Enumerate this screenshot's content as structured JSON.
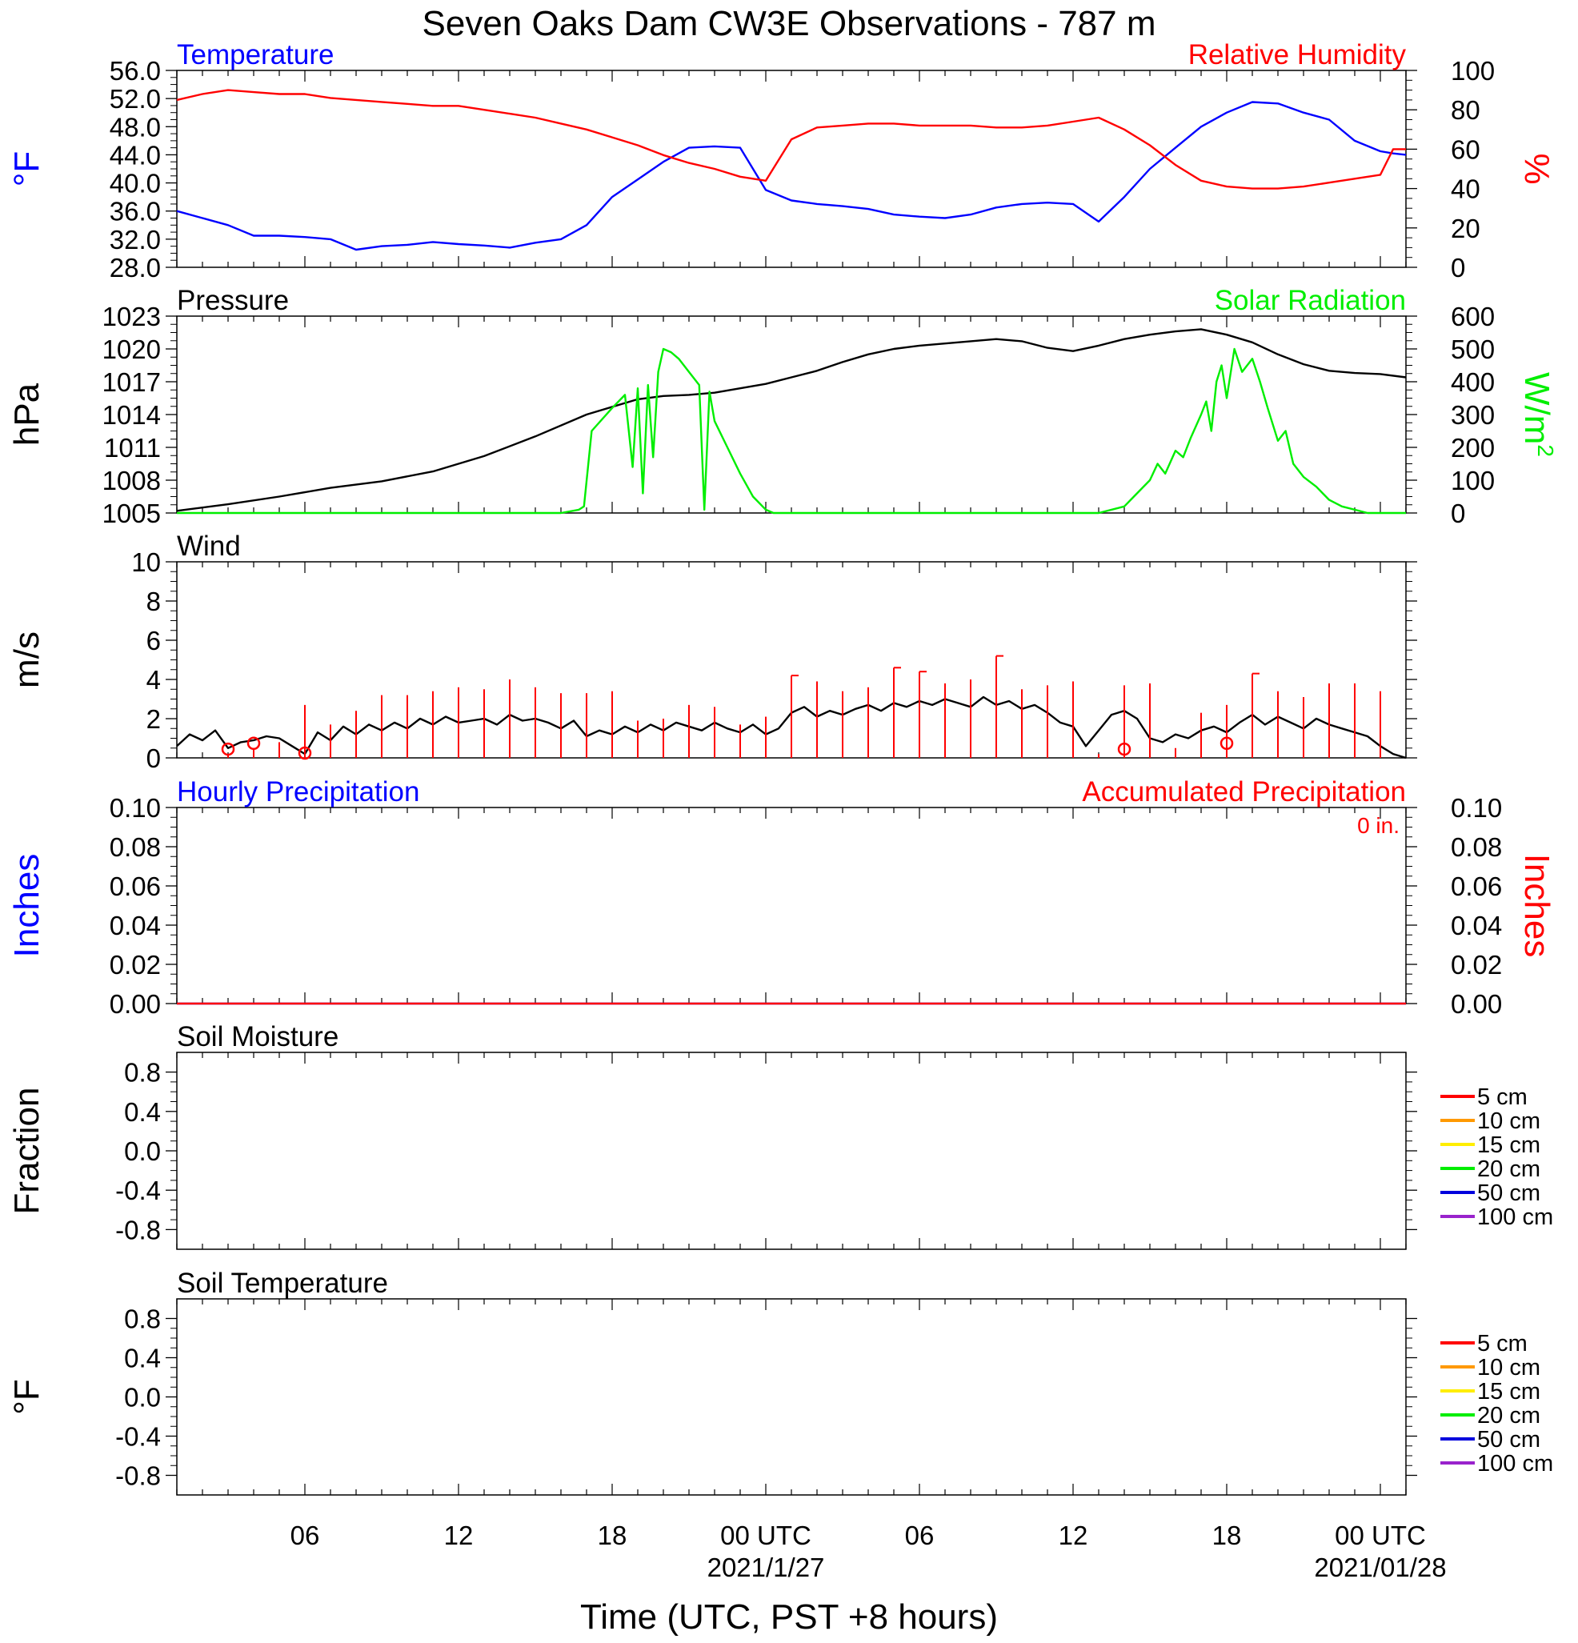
{
  "title": "Seven Oaks Dam CW3E Observations - 787 m",
  "x_axis": {
    "label": "Time (UTC, PST +8 hours)",
    "range_hours": [
      0,
      48
    ],
    "ticks": [
      {
        "hour": 5,
        "label": "06",
        "date": ""
      },
      {
        "hour": 11,
        "label": "12",
        "date": ""
      },
      {
        "hour": 17,
        "label": "18",
        "date": ""
      },
      {
        "hour": 23,
        "label": "00 UTC",
        "date": "2021/1/27"
      },
      {
        "hour": 29,
        "label": "06",
        "date": ""
      },
      {
        "hour": 35,
        "label": "12",
        "date": ""
      },
      {
        "hour": 41,
        "label": "18",
        "date": ""
      },
      {
        "hour": 47,
        "label": "00 UTC",
        "date": "2021/01/28"
      }
    ]
  },
  "colors": {
    "temperature": "#0000ff",
    "humidity": "#ff0000",
    "pressure": "#000000",
    "solar": "#00ee00",
    "wind": "#000000",
    "barb": "#ff0000",
    "hourly_precip": "#0000ff",
    "accum_precip": "#ff0000"
  },
  "chart_data": [
    {
      "id": "temp_rh",
      "type": "line",
      "title_left": "Temperature",
      "title_right": "Relative Humidity",
      "ylabel_left": "°F",
      "ylabel_right": "%",
      "ylim_left": [
        28,
        56
      ],
      "ylim_right": [
        0,
        100
      ],
      "yticks_left": [
        "28.0",
        "32.0",
        "36.0",
        "40.0",
        "44.0",
        "48.0",
        "52.0",
        "56.0"
      ],
      "yticks_right": [
        "0",
        "20",
        "40",
        "60",
        "80",
        "100"
      ],
      "series": [
        {
          "name": "Temperature",
          "axis": "left",
          "x": [
            0,
            1,
            2,
            3,
            4,
            5,
            6,
            7,
            8,
            9,
            10,
            11,
            12,
            13,
            14,
            15,
            16,
            17,
            18,
            19,
            20,
            21,
            22,
            23,
            24,
            25,
            26,
            27,
            28,
            29,
            30,
            31,
            32,
            33,
            34,
            35,
            36,
            37,
            38,
            39,
            40,
            41,
            42,
            43,
            44,
            45,
            46,
            47,
            47.5,
            48
          ],
          "y": [
            36,
            35,
            34,
            32.5,
            32.5,
            32.3,
            32,
            30.5,
            31,
            31.2,
            31.6,
            31.3,
            31.1,
            30.8,
            31.5,
            32,
            34,
            38,
            40.5,
            43,
            45,
            45.2,
            45,
            39,
            37.5,
            37,
            36.7,
            36.3,
            35.5,
            35.2,
            35,
            35.5,
            36.5,
            37,
            37.2,
            37,
            34.5,
            38,
            42,
            45,
            48,
            50,
            51.5,
            51.3,
            50,
            49,
            46,
            44.5,
            44.2,
            44
          ]
        },
        {
          "name": "Relative Humidity",
          "axis": "right",
          "x": [
            0,
            1,
            2,
            3,
            4,
            5,
            6,
            7,
            8,
            9,
            10,
            11,
            12,
            13,
            14,
            15,
            16,
            17,
            18,
            19,
            20,
            21,
            22,
            23,
            24,
            25,
            26,
            27,
            28,
            29,
            30,
            31,
            32,
            33,
            34,
            35,
            36,
            37,
            38,
            39,
            40,
            41,
            42,
            43,
            44,
            45,
            46,
            47,
            47.5,
            48
          ],
          "y": [
            85,
            88,
            90,
            89,
            88,
            88,
            86,
            85,
            84,
            83,
            82,
            82,
            80,
            78,
            76,
            73,
            70,
            66,
            62,
            57,
            53,
            50,
            46,
            44,
            65,
            71,
            72,
            73,
            73,
            72,
            72,
            72,
            71,
            71,
            72,
            74,
            76,
            70,
            62,
            52,
            44,
            41,
            40,
            40,
            41,
            43,
            45,
            47,
            60,
            60
          ]
        }
      ]
    },
    {
      "id": "pressure_solar",
      "type": "line",
      "title_left": "Pressure",
      "title_right": "Solar Radiation",
      "ylabel_left": "hPa",
      "ylabel_right": "W/m",
      "ylabel_right_sup": "2",
      "ylim_left": [
        1005,
        1023
      ],
      "ylim_right": [
        0,
        600
      ],
      "yticks_left": [
        "1005",
        "1008",
        "1011",
        "1014",
        "1017",
        "1020",
        "1023"
      ],
      "yticks_right": [
        "0",
        "100",
        "200",
        "300",
        "400",
        "500",
        "600"
      ],
      "series": [
        {
          "name": "Pressure",
          "axis": "left",
          "x": [
            0,
            2,
            4,
            6,
            8,
            10,
            12,
            14,
            16,
            17,
            18,
            19,
            20,
            21,
            22,
            23,
            24,
            25,
            26,
            27,
            28,
            29,
            30,
            31,
            32,
            33,
            34,
            35,
            36,
            37,
            38,
            39,
            40,
            41,
            42,
            43,
            44,
            45,
            46,
            47,
            48
          ],
          "y": [
            1005.2,
            1005.8,
            1006.5,
            1007.3,
            1007.9,
            1008.8,
            1010.2,
            1012,
            1014,
            1014.7,
            1015.4,
            1015.7,
            1015.8,
            1016,
            1016.4,
            1016.8,
            1017.4,
            1018,
            1018.8,
            1019.5,
            1020,
            1020.3,
            1020.5,
            1020.7,
            1020.9,
            1020.7,
            1020.1,
            1019.8,
            1020.3,
            1020.9,
            1021.3,
            1021.6,
            1021.8,
            1021.3,
            1020.6,
            1019.5,
            1018.6,
            1018,
            1017.8,
            1017.7,
            1017.4
          ]
        },
        {
          "name": "Solar Radiation",
          "axis": "right",
          "x": [
            0,
            14,
            15,
            15.7,
            15.9,
            16.2,
            17,
            17.5,
            17.8,
            18,
            18.2,
            18.4,
            18.6,
            18.8,
            19,
            19.3,
            19.6,
            20,
            20.4,
            20.6,
            20.8,
            21,
            21.5,
            22,
            22.5,
            23,
            23.3,
            23.4,
            36,
            37,
            37.5,
            38,
            38.3,
            38.6,
            39,
            39.3,
            39.6,
            40,
            40.2,
            40.4,
            40.6,
            40.8,
            41,
            41.3,
            41.6,
            42,
            42.3,
            42.6,
            43,
            43.3,
            43.6,
            44,
            44.5,
            45,
            45.5,
            46,
            46.5,
            47,
            47.4,
            47.6,
            48
          ],
          "y": [
            0,
            0,
            0,
            10,
            20,
            250,
            320,
            360,
            140,
            380,
            60,
            390,
            170,
            430,
            500,
            490,
            470,
            430,
            390,
            10,
            370,
            280,
            200,
            120,
            50,
            10,
            0,
            0,
            0,
            20,
            60,
            100,
            150,
            120,
            190,
            170,
            230,
            300,
            340,
            250,
            400,
            450,
            350,
            500,
            430,
            470,
            400,
            320,
            220,
            250,
            150,
            110,
            80,
            40,
            20,
            10,
            0,
            0,
            0,
            0,
            0
          ]
        }
      ]
    },
    {
      "id": "wind",
      "type": "line",
      "title_left": "Wind",
      "ylabel_left": "m/s",
      "ylim_left": [
        0,
        10
      ],
      "yticks_left": [
        "0",
        "2",
        "4",
        "6",
        "8",
        "10"
      ],
      "series": [
        {
          "name": "Wind Speed",
          "axis": "left",
          "x": [
            0,
            0.5,
            1,
            1.5,
            2,
            2.5,
            3,
            3.5,
            4,
            4.5,
            5,
            5.5,
            6,
            6.5,
            7,
            7.5,
            8,
            8.5,
            9,
            9.5,
            10,
            10.5,
            11,
            11.5,
            12,
            12.5,
            13,
            13.5,
            14,
            14.5,
            15,
            15.5,
            16,
            16.5,
            17,
            17.5,
            18,
            18.5,
            19,
            19.5,
            20,
            20.5,
            21,
            21.5,
            22,
            22.5,
            23,
            23.5,
            24,
            24.5,
            25,
            25.5,
            26,
            26.5,
            27,
            27.5,
            28,
            28.5,
            29,
            29.5,
            30,
            30.5,
            31,
            31.5,
            32,
            32.5,
            33,
            33.5,
            34,
            34.5,
            35,
            35.5,
            36,
            36.5,
            37,
            37.5,
            38,
            38.5,
            39,
            39.5,
            40,
            40.5,
            41,
            41.5,
            42,
            42.5,
            43,
            43.5,
            44,
            44.5,
            45,
            45.5,
            46,
            46.5,
            47,
            47.5,
            48
          ],
          "y": [
            0.6,
            1.2,
            0.9,
            1.4,
            0.5,
            0.8,
            0.9,
            1.1,
            1.0,
            0.6,
            0.2,
            1.3,
            0.9,
            1.6,
            1.2,
            1.7,
            1.4,
            1.8,
            1.5,
            2.0,
            1.7,
            2.1,
            1.8,
            1.9,
            2.0,
            1.7,
            2.2,
            1.9,
            2.0,
            1.8,
            1.5,
            1.9,
            1.1,
            1.4,
            1.2,
            1.6,
            1.3,
            1.7,
            1.4,
            1.8,
            1.6,
            1.4,
            1.8,
            1.5,
            1.3,
            1.7,
            1.2,
            1.5,
            2.3,
            2.6,
            2.1,
            2.4,
            2.2,
            2.5,
            2.7,
            2.4,
            2.8,
            2.6,
            2.9,
            2.7,
            3.0,
            2.8,
            2.6,
            3.1,
            2.7,
            2.9,
            2.5,
            2.7,
            2.3,
            1.8,
            1.6,
            0.6,
            1.4,
            2.2,
            2.4,
            2.0,
            1.0,
            0.8,
            1.2,
            1.0,
            1.4,
            1.6,
            1.3,
            1.8,
            2.2,
            1.7,
            2.1,
            1.8,
            1.5,
            2.0,
            1.7,
            1.5,
            1.3,
            1.1,
            0.6,
            0.2,
            0.0
          ]
        },
        {
          "name": "Wind Barbs",
          "axis": "left",
          "marker": "barb",
          "x": [
            2,
            3,
            4,
            5,
            6,
            7,
            8,
            9,
            10,
            11,
            12,
            13,
            14,
            15,
            16,
            17,
            18,
            19,
            20,
            21,
            22,
            23,
            24,
            25,
            26,
            27,
            28,
            29,
            30,
            31,
            32,
            33,
            34,
            35,
            36,
            37,
            38,
            39,
            40,
            41,
            42,
            43,
            44,
            45,
            46,
            47
          ],
          "y": [
            0.2,
            0.5,
            0.8,
            2.7,
            1.7,
            2.4,
            3.2,
            3.2,
            3.4,
            3.6,
            3.5,
            4.0,
            3.6,
            3.3,
            3.3,
            3.4,
            1.9,
            2.0,
            2.7,
            2.6,
            1.7,
            2.1,
            4.2,
            3.9,
            3.4,
            3.6,
            4.6,
            4.4,
            3.8,
            4.0,
            5.2,
            3.5,
            3.7,
            3.9,
            0.2,
            3.7,
            3.8,
            0.5,
            2.3,
            2.7,
            4.3,
            3.4,
            3.1,
            3.8,
            3.8,
            3.4
          ]
        },
        {
          "name": "Calm",
          "axis": "left",
          "marker": "circle",
          "x": [
            2,
            3,
            5,
            37,
            41
          ],
          "y": [
            0.2,
            0.5,
            0.0,
            0.2,
            0.5
          ]
        }
      ]
    },
    {
      "id": "precip",
      "type": "line",
      "title_left": "Hourly Precipitation",
      "title_right": "Accumulated Precipitation",
      "annotation": "0 in.",
      "ylabel_left": "Inches",
      "ylabel_right": "Inches",
      "ylim_left": [
        0,
        0.1
      ],
      "ylim_right": [
        0,
        0.1
      ],
      "yticks_left": [
        "0.00",
        "0.02",
        "0.04",
        "0.06",
        "0.08",
        "0.10"
      ],
      "yticks_right": [
        "0.00",
        "0.02",
        "0.04",
        "0.06",
        "0.08",
        "0.10"
      ],
      "series": [
        {
          "name": "Hourly Precipitation",
          "axis": "left",
          "x": [
            0,
            48
          ],
          "y": [
            0,
            0
          ]
        },
        {
          "name": "Accumulated Precipitation",
          "axis": "right",
          "x": [
            0,
            48
          ],
          "y": [
            0,
            0
          ]
        }
      ]
    },
    {
      "id": "soil_moisture",
      "type": "line",
      "title_left": "Soil Moisture",
      "ylabel_left": "Fraction",
      "ylim_left": [
        -1,
        1
      ],
      "yticks_left": [
        "-0.8",
        "-0.4",
        "0.0",
        "0.4",
        "0.8"
      ],
      "legend": [
        {
          "label": "5 cm",
          "color": "#ff0000"
        },
        {
          "label": "10 cm",
          "color": "#ff9900"
        },
        {
          "label": "15 cm",
          "color": "#ffee00"
        },
        {
          "label": "20 cm",
          "color": "#00ee00"
        },
        {
          "label": "50 cm",
          "color": "#0000dd"
        },
        {
          "label": "100 cm",
          "color": "#9922cc"
        }
      ],
      "series": []
    },
    {
      "id": "soil_temperature",
      "type": "line",
      "title_left": "Soil Temperature",
      "ylabel_left": "°F",
      "ylim_left": [
        -1,
        1
      ],
      "yticks_left": [
        "-0.8",
        "-0.4",
        "0.0",
        "0.4",
        "0.8"
      ],
      "legend": [
        {
          "label": "5 cm",
          "color": "#ff0000"
        },
        {
          "label": "10 cm",
          "color": "#ff9900"
        },
        {
          "label": "15 cm",
          "color": "#ffee00"
        },
        {
          "label": "20 cm",
          "color": "#00ee00"
        },
        {
          "label": "50 cm",
          "color": "#0000dd"
        },
        {
          "label": "100 cm",
          "color": "#9922cc"
        }
      ],
      "series": []
    }
  ]
}
